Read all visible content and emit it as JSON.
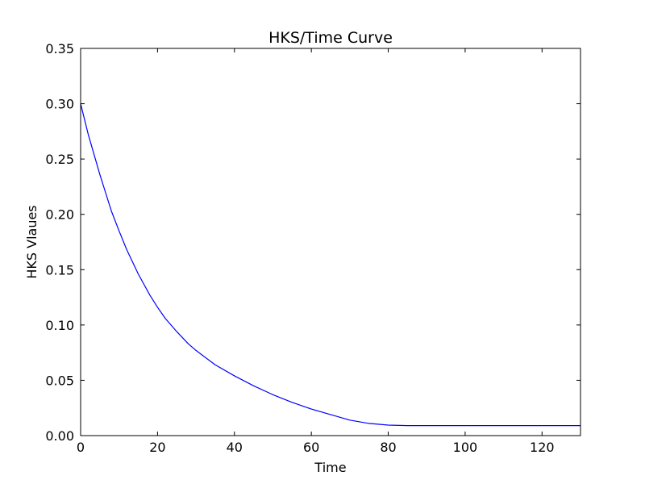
{
  "chart_data": {
    "type": "line",
    "title": "HKS/Time Curve",
    "xlabel": "Time",
    "ylabel": "HKS Vlaues",
    "xlim": [
      0,
      130
    ],
    "ylim": [
      0,
      0.35
    ],
    "xticks": [
      "0",
      "20",
      "40",
      "60",
      "80",
      "100",
      "120"
    ],
    "yticks": [
      "0.00",
      "0.05",
      "0.10",
      "0.15",
      "0.20",
      "0.25",
      "0.30",
      "0.35"
    ],
    "grid": false,
    "series": [
      {
        "color": "#0000ff",
        "x": [
          0,
          2,
          5,
          8,
          10,
          12,
          15,
          18,
          20,
          22,
          25,
          28,
          30,
          35,
          40,
          45,
          50,
          55,
          60,
          65,
          70,
          75,
          80,
          85,
          90,
          95,
          100,
          110,
          120,
          130
        ],
        "y": [
          0.3,
          0.272,
          0.236,
          0.203,
          0.185,
          0.168,
          0.146,
          0.127,
          0.116,
          0.106,
          0.094,
          0.083,
          0.077,
          0.064,
          0.054,
          0.045,
          0.037,
          0.03,
          0.024,
          0.019,
          0.014,
          0.011,
          0.0095,
          0.009,
          0.009,
          0.009,
          0.009,
          0.009,
          0.009,
          0.009
        ]
      }
    ]
  }
}
